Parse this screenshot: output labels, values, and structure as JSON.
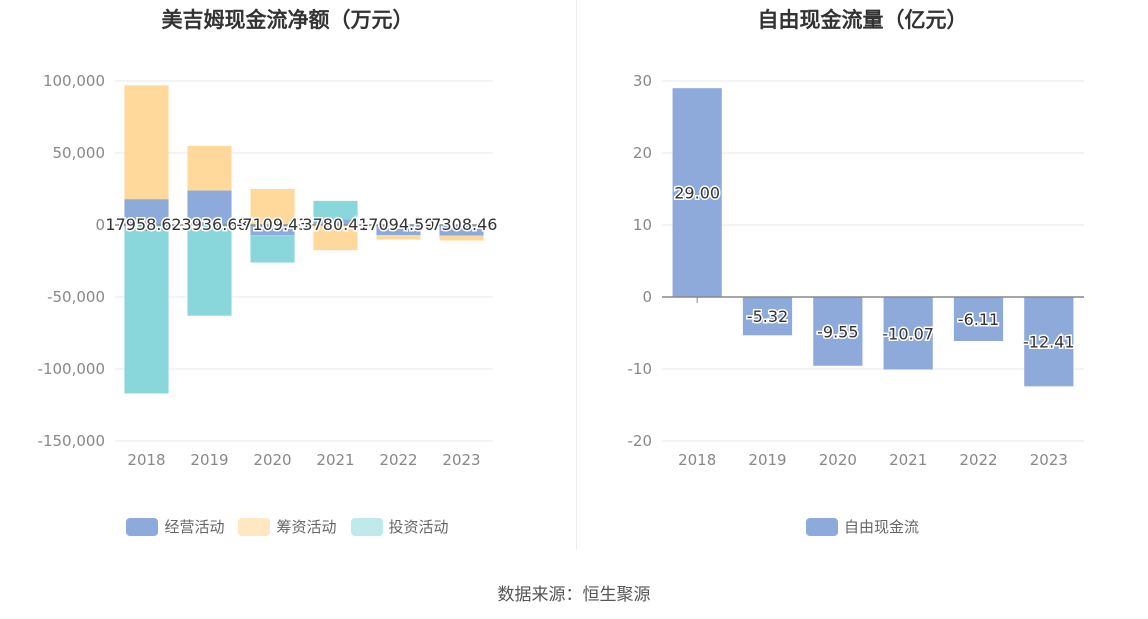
{
  "source_text": "数据来源：恒生聚源",
  "chart_data": [
    {
      "type": "bar",
      "stacked": true,
      "title": "美吉姆现金流净额（万元）",
      "categories": [
        "2018",
        "2019",
        "2020",
        "2021",
        "2022",
        "2023"
      ],
      "ylim": [
        -150000,
        100000
      ],
      "yticks": [
        100000,
        50000,
        0,
        -50000,
        -100000,
        -150000
      ],
      "ytick_labels": [
        "100,000",
        "50,000",
        "0",
        "-50,000",
        "-100,000",
        "-150,000"
      ],
      "grid": true,
      "legend_position": "bottom",
      "series": [
        {
          "name": "经营活动",
          "color": "#8eaadb",
          "values": [
            17958.67,
            23936.68,
            -7109.43,
            3780.41,
            -7094.5,
            -7308.46
          ],
          "labels": [
            "17958.6…",
            "23936.68",
            "-7109.43",
            "3780.41",
            "-7094.50",
            "-7308.46"
          ]
        },
        {
          "name": "筹资活动",
          "color": "#ffd89c",
          "values": [
            79000,
            31000,
            25000,
            -17500,
            -3000,
            -3500
          ]
        },
        {
          "name": "投资活动",
          "color": "#8ad7db",
          "values": [
            -117000,
            -63000,
            -19000,
            13000,
            0,
            0
          ]
        }
      ],
      "legend_colors": [
        "#8eaadb",
        "#ffe7c1",
        "#c0e9ec"
      ]
    },
    {
      "type": "bar",
      "title": "自由现金流量（亿元）",
      "categories": [
        "2018",
        "2019",
        "2020",
        "2021",
        "2022",
        "2023"
      ],
      "ylim": [
        -20,
        30
      ],
      "yticks": [
        30,
        20,
        10,
        0,
        -10,
        -20
      ],
      "ytick_labels": [
        "30",
        "20",
        "10",
        "0",
        "-10",
        "-20"
      ],
      "grid": true,
      "legend_position": "bottom",
      "series": [
        {
          "name": "自由现金流",
          "color": "#8eaadb",
          "values": [
            29.0,
            -5.32,
            -9.55,
            -10.07,
            -6.11,
            -12.41
          ],
          "labels": [
            "29.00",
            "-5.32",
            "-9.55",
            "-10.07",
            "-6.11",
            "-12.41"
          ]
        }
      ],
      "legend_colors": [
        "#8eaadb"
      ]
    }
  ]
}
